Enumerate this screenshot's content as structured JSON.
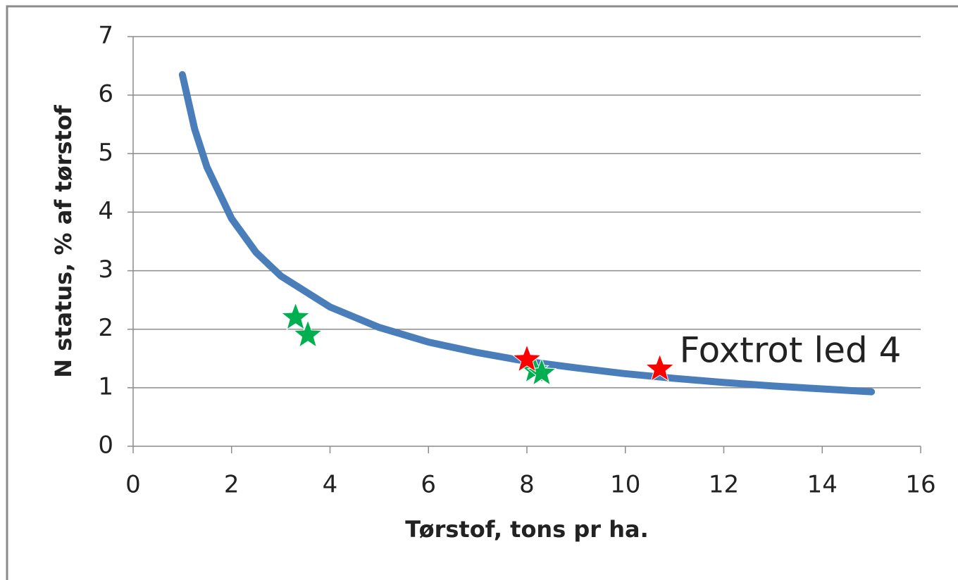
{
  "chart_data": {
    "type": "line",
    "x_label": "Tørstof, tons pr ha.",
    "y_label": "N status, % af tørstof",
    "xlim": [
      0,
      16
    ],
    "xticks": [
      0,
      2,
      4,
      6,
      8,
      10,
      12,
      14,
      16
    ],
    "ylim": [
      0,
      7
    ],
    "yticks": [
      0,
      1,
      2,
      3,
      4,
      5,
      6,
      7
    ],
    "grid": true,
    "series": [
      {
        "color": "#4a7ebb",
        "marker": "none",
        "x": [
          1,
          1.25,
          1.5,
          2,
          2.5,
          3,
          4,
          5,
          6,
          7,
          8,
          9,
          10,
          11,
          12,
          13,
          14,
          15
        ],
        "values": [
          6.35,
          5.42,
          4.77,
          3.89,
          3.31,
          2.91,
          2.38,
          2.03,
          1.78,
          1.6,
          1.45,
          1.34,
          1.24,
          1.16,
          1.09,
          1.03,
          0.98,
          0.93
        ]
      },
      {
        "color": "#00b050",
        "marker": "star",
        "x": [
          3.3,
          3.55,
          8.15,
          8.3
        ],
        "values": [
          2.2,
          1.9,
          1.3,
          1.25
        ]
      },
      {
        "color": "#ff0000",
        "marker": "star",
        "x": [
          8.0,
          10.7
        ],
        "values": [
          1.48,
          1.32
        ]
      }
    ],
    "annotations": [
      {
        "text": "Foxtrot led 4",
        "x": 11.1,
        "y": 1.6
      }
    ]
  }
}
